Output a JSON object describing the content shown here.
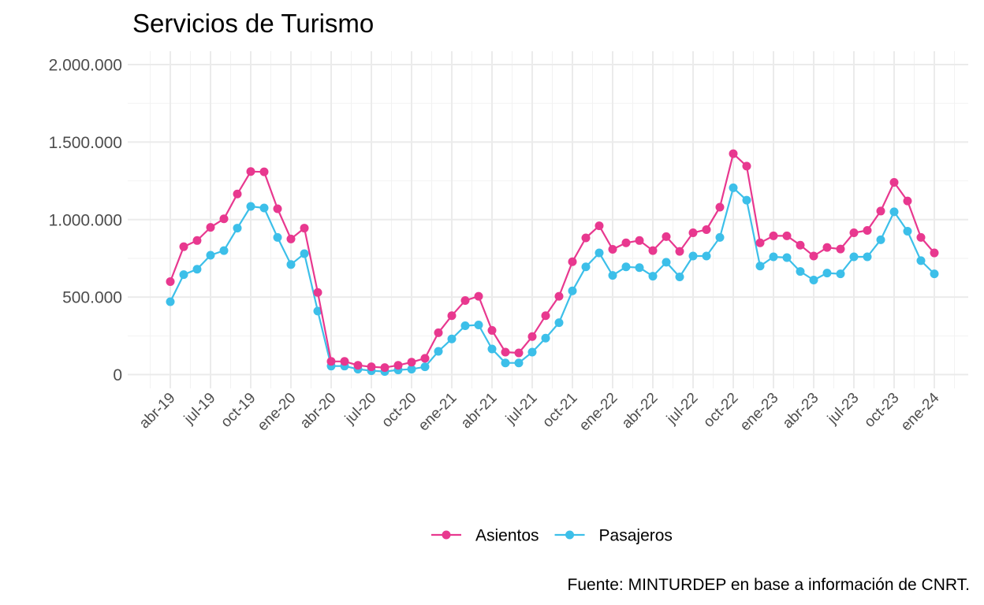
{
  "chart_data": {
    "type": "line",
    "title": "Servicios de Turismo",
    "caption": "Fuente: MINTURDEP en base a información de CNRT.",
    "xlabel": "",
    "ylabel": "",
    "ylim": [
      0,
      2000000
    ],
    "y_ticks": [
      0,
      500000,
      1000000,
      1500000,
      2000000
    ],
    "y_tick_labels": [
      "0",
      "500.000",
      "1.000.000",
      "1.500.000",
      "2.000.000"
    ],
    "x_start": "2019-04",
    "x_ticks": [
      "2019-04",
      "2019-07",
      "2019-10",
      "2020-01",
      "2020-04",
      "2020-07",
      "2020-10",
      "2021-01",
      "2021-04",
      "2021-07",
      "2021-10",
      "2022-01",
      "2022-04",
      "2022-07",
      "2022-10",
      "2023-01",
      "2023-04",
      "2023-07",
      "2023-10",
      "2024-01"
    ],
    "x_tick_labels": [
      "abr-19",
      "jul-19",
      "oct-19",
      "ene-20",
      "abr-20",
      "jul-20",
      "oct-20",
      "ene-21",
      "abr-21",
      "jul-21",
      "oct-21",
      "ene-22",
      "abr-22",
      "jul-22",
      "oct-22",
      "ene-23",
      "abr-23",
      "jul-23",
      "oct-23",
      "ene-24"
    ],
    "grid": true,
    "legend_position": "bottom",
    "series": [
      {
        "name": "Asientos",
        "color": "#E8388F",
        "values": [
          600000,
          825000,
          865000,
          950000,
          1005000,
          1165000,
          1310000,
          1308000,
          1070000,
          875000,
          945000,
          530000,
          85000,
          85000,
          60000,
          50000,
          45000,
          60000,
          80000,
          105000,
          270000,
          380000,
          478000,
          505000,
          285000,
          145000,
          140000,
          245000,
          380000,
          505000,
          728000,
          882000,
          960000,
          808000,
          850000,
          865000,
          800000,
          890000,
          795000,
          915000,
          935000,
          1080000,
          1425000,
          1345000,
          850000,
          895000,
          895000,
          835000,
          765000,
          820000,
          810000,
          915000,
          930000,
          1055000,
          1240000,
          1120000,
          885000,
          785000
        ]
      },
      {
        "name": "Pasajeros",
        "color": "#3CBFE9",
        "values": [
          470000,
          645000,
          680000,
          770000,
          800000,
          945000,
          1085000,
          1075000,
          885000,
          710000,
          780000,
          410000,
          55000,
          55000,
          35000,
          25000,
          20000,
          30000,
          35000,
          50000,
          150000,
          230000,
          315000,
          320000,
          165000,
          75000,
          75000,
          145000,
          235000,
          335000,
          540000,
          695000,
          785000,
          640000,
          695000,
          690000,
          635000,
          725000,
          630000,
          765000,
          765000,
          885000,
          1205000,
          1125000,
          700000,
          760000,
          755000,
          665000,
          610000,
          655000,
          650000,
          760000,
          760000,
          870000,
          1050000,
          925000,
          735000,
          650000
        ]
      }
    ]
  }
}
